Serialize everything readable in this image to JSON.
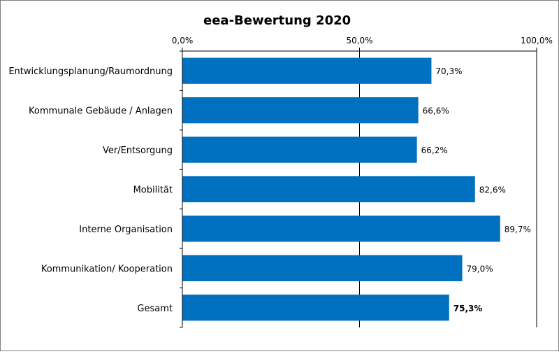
{
  "chart_data": {
    "type": "bar",
    "orientation": "horizontal",
    "title": "eea-Bewertung 2020",
    "categories": [
      "Entwicklungsplanung/Raumordnung",
      "Kommunale Gebäude / Anlagen",
      "Ver/Entsorgung",
      "Mobilität",
      "Interne Organisation",
      "Kommunikation/ Kooperation",
      "Gesamt"
    ],
    "values": [
      70.3,
      66.6,
      66.2,
      82.6,
      89.7,
      79.0,
      75.3
    ],
    "data_labels": [
      "70,3%",
      "66,6%",
      "66,2%",
      "82,6%",
      "89,7%",
      "79,0%",
      "75,3%"
    ],
    "bold_labels": [
      false,
      false,
      false,
      false,
      false,
      false,
      true
    ],
    "xlim": [
      0,
      100
    ],
    "x_tick_values": [
      0,
      50,
      100
    ],
    "x_tick_labels": [
      "0,0%",
      "50,0%",
      "100,0%"
    ],
    "x_axis_position": "top",
    "grid": true,
    "legend": "none",
    "bar_color": "#0070C0"
  }
}
